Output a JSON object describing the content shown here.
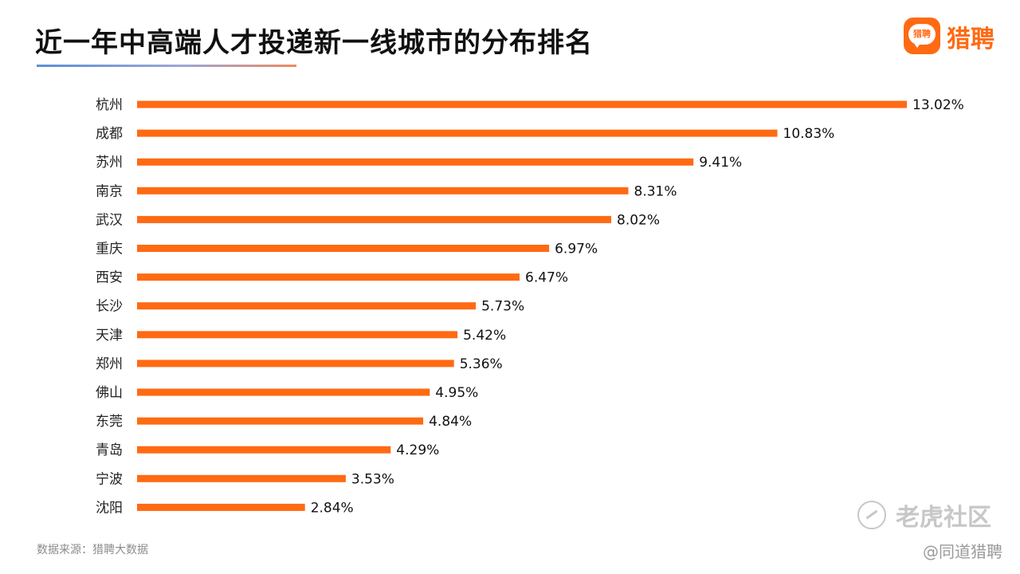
{
  "header": {
    "title": "近一年中高端人才投递新一线城市的分布排名",
    "logo_text": "猎聘",
    "logo_badge_text": "猎聘"
  },
  "colors": {
    "bar": "#ff6a13",
    "label": "#222222",
    "value": "#111111"
  },
  "chart_data": {
    "type": "bar",
    "orientation": "horizontal",
    "title": "近一年中高端人才投递新一线城市的分布排名",
    "xlabel": "",
    "ylabel": "",
    "value_unit": "%",
    "xlim": [
      0,
      13.02
    ],
    "grid": false,
    "legend": false,
    "categories": [
      "杭州",
      "成都",
      "苏州",
      "南京",
      "武汉",
      "重庆",
      "西安",
      "长沙",
      "天津",
      "郑州",
      "佛山",
      "东莞",
      "青岛",
      "宁波",
      "沈阳"
    ],
    "values": [
      13.02,
      10.83,
      9.41,
      8.31,
      8.02,
      6.97,
      6.47,
      5.73,
      5.42,
      5.36,
      4.95,
      4.84,
      4.29,
      3.53,
      2.84
    ],
    "value_labels": [
      "13.02%",
      "10.83%",
      "9.41%",
      "8.31%",
      "8.02%",
      "6.97%",
      "6.47%",
      "5.73%",
      "5.42%",
      "5.36%",
      "4.95%",
      "4.84%",
      "4.29%",
      "3.53%",
      "2.84%"
    ]
  },
  "footer": {
    "source": "数据来源：猎聘大数据",
    "watermark": "老虎社区",
    "handle": "@同道猎聘"
  }
}
